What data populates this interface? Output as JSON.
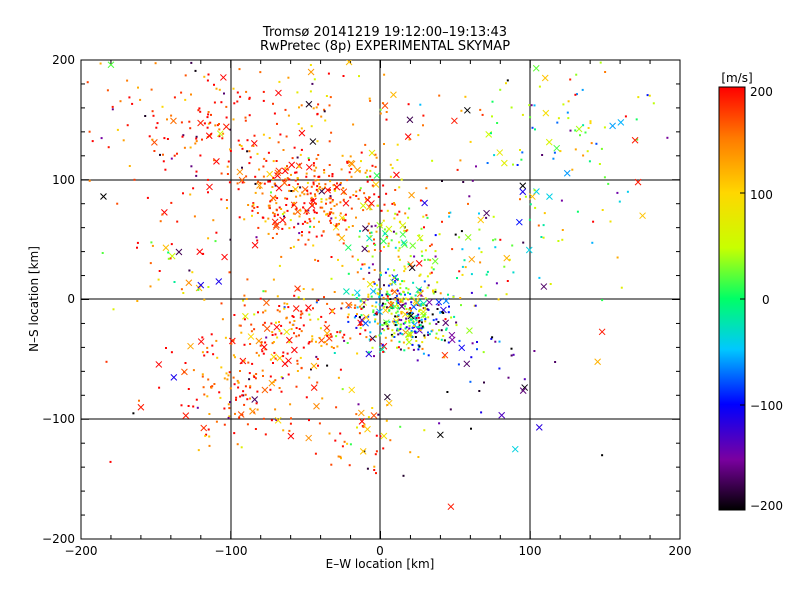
{
  "chart_data": {
    "type": "scatter",
    "title": "Tromsø 20141219 19:12:00–19:13:43",
    "subtitle": "RwPretec (8p) EXPERIMENTAL SKYMAP",
    "xlabel": "E–W location [km]",
    "ylabel": "N–S location [km]",
    "xlim": [
      -200,
      200
    ],
    "ylim": [
      -200,
      200
    ],
    "xticks": [
      "−200",
      "−100",
      "0",
      "100",
      "200"
    ],
    "yticks": [
      "−200",
      "−100",
      "0",
      "100",
      "200"
    ],
    "grid_lines": [
      -100,
      0,
      100
    ],
    "colorbar": {
      "label": "[m/s]",
      "range": [
        -200,
        200
      ],
      "ticks": [
        "200",
        "100",
        "0",
        "−100",
        "−200"
      ],
      "colors": [
        "#000000",
        "#7a00a0",
        "#0000ff",
        "#00c8ff",
        "#00ff66",
        "#c8ff00",
        "#ffd700",
        "#ff7a00",
        "#ff0000"
      ]
    },
    "markers": [
      "dot",
      "cross"
    ],
    "clusters": [
      {
        "cx": -45,
        "cy": 85,
        "sx": 30,
        "sy": 22,
        "n": 380,
        "v": 165,
        "vs": 45
      },
      {
        "cx": -125,
        "cy": 140,
        "sx": 30,
        "sy": 28,
        "n": 150,
        "v": 175,
        "vs": 40
      },
      {
        "cx": 10,
        "cy": 40,
        "sx": 18,
        "sy": 30,
        "n": 120,
        "v": 60,
        "vs": 60
      },
      {
        "cx": 15,
        "cy": -12,
        "sx": 20,
        "sy": 16,
        "n": 360,
        "v": 0,
        "vs": 110
      },
      {
        "cx": -50,
        "cy": -25,
        "sx": 30,
        "sy": 20,
        "n": 180,
        "v": 150,
        "vs": 60
      },
      {
        "cx": -90,
        "cy": -75,
        "sx": 28,
        "sy": 25,
        "n": 160,
        "v": 170,
        "vs": 45
      },
      {
        "cx": -15,
        "cy": -110,
        "sx": 20,
        "sy": 20,
        "n": 55,
        "v": 160,
        "vs": 55
      },
      {
        "cx": 120,
        "cy": 140,
        "sx": 35,
        "sy": 35,
        "n": 110,
        "v": 40,
        "vs": 75
      },
      {
        "cx": -40,
        "cy": 160,
        "sx": 40,
        "sy": 25,
        "n": 90,
        "v": 160,
        "vs": 50
      },
      {
        "cx": 60,
        "cy": 50,
        "sx": 35,
        "sy": 25,
        "n": 80,
        "v": 20,
        "vs": 100
      },
      {
        "cx": 60,
        "cy": -50,
        "sx": 25,
        "sy": 25,
        "n": 45,
        "v": -140,
        "vs": 60
      },
      {
        "cx": -140,
        "cy": 20,
        "sx": 20,
        "sy": 30,
        "n": 35,
        "v": 120,
        "vs": 90
      }
    ],
    "outliers": [
      {
        "x": -185,
        "y": 86,
        "v": -200,
        "m": "cross"
      },
      {
        "x": -183,
        "y": -52,
        "v": 180,
        "m": "dot"
      },
      {
        "x": -180,
        "y": 196,
        "v": 20,
        "m": "cross"
      },
      {
        "x": 172,
        "y": 98,
        "v": 190,
        "m": "cross"
      },
      {
        "x": 175,
        "y": 70,
        "v": 110,
        "m": "cross"
      },
      {
        "x": 170,
        "y": 133,
        "v": 190,
        "m": "cross"
      },
      {
        "x": 148,
        "y": -27,
        "v": 190,
        "m": "cross"
      },
      {
        "x": 145,
        "y": -52,
        "v": 120,
        "m": "cross"
      },
      {
        "x": 90,
        "y": -125,
        "v": -40,
        "m": "cross"
      },
      {
        "x": 148,
        "y": -130,
        "v": -200,
        "m": "dot"
      },
      {
        "x": 95,
        "y": 95,
        "v": -200,
        "m": "cross"
      },
      {
        "x": 95,
        "y": 90,
        "v": -110,
        "m": "cross"
      },
      {
        "x": 142,
        "y": 65,
        "v": 200,
        "m": "dot"
      },
      {
        "x": 110,
        "y": 185,
        "v": 110,
        "m": "cross"
      },
      {
        "x": 150,
        "y": 190,
        "v": 150,
        "m": "dot"
      },
      {
        "x": 47,
        "y": -173,
        "v": 190,
        "m": "cross"
      },
      {
        "x": -3,
        "y": -145,
        "v": 190,
        "m": "dot"
      },
      {
        "x": -130,
        "y": -97,
        "v": 190,
        "m": "cross"
      },
      {
        "x": -160,
        "y": -90,
        "v": 190,
        "m": "cross"
      },
      {
        "x": -138,
        "y": -65,
        "v": -110,
        "m": "cross"
      },
      {
        "x": -165,
        "y": -95,
        "v": -200,
        "m": "dot"
      },
      {
        "x": 40,
        "y": -113,
        "v": -200,
        "m": "cross"
      },
      {
        "x": 58,
        "y": 158,
        "v": -200,
        "m": "cross"
      },
      {
        "x": 85,
        "y": 183,
        "v": -200,
        "m": "dot"
      },
      {
        "x": 148,
        "y": -0.5,
        "v": 10,
        "m": "dot"
      },
      {
        "x": 135,
        "y": 175,
        "v": -60,
        "m": "dot"
      },
      {
        "x": 155,
        "y": 145,
        "v": -60,
        "m": "cross"
      },
      {
        "x": -120,
        "y": 12,
        "v": -110,
        "m": "cross"
      },
      {
        "x": -108,
        "y": 15,
        "v": -110,
        "m": "cross"
      },
      {
        "x": -128,
        "y": 14,
        "v": 140,
        "m": "cross"
      }
    ]
  }
}
